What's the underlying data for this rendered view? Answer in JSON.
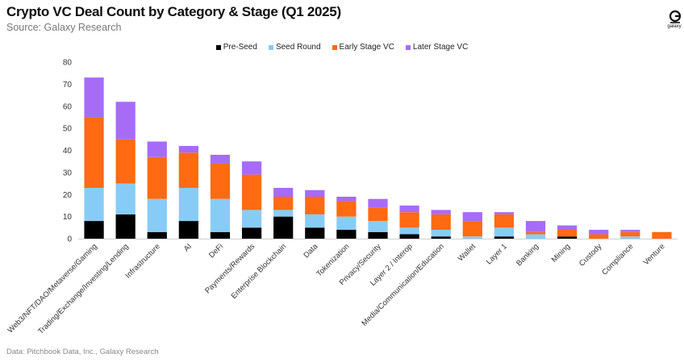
{
  "header": {
    "title": "Crypto VC Deal Count by Category & Stage (Q1 2025)",
    "subtitle": "Source: Galaxy Research"
  },
  "logo": {
    "text": "galaxy",
    "icon": "galaxy-logo-icon"
  },
  "footer": {
    "note": "Data: Pitchbook Data, Inc., Galaxy Research"
  },
  "colors": {
    "Pre-Seed": "#000000",
    "Seed Round": "#87ccf6",
    "Early Stage VC": "#ff6a13",
    "Later Stage VC": "#a66cf7"
  },
  "chart_data": {
    "type": "bar",
    "stacked": true,
    "ylim": [
      0,
      80
    ],
    "yticks": [
      0,
      10,
      20,
      30,
      40,
      50,
      60,
      70,
      80
    ],
    "grid": false,
    "legend_position": "top-center",
    "categories": [
      "Web3/NFT/DAO/Metaverse/Gaming",
      "Trading/Exchange/Investing/Lending",
      "Infrastructure",
      "AI",
      "DeFi",
      "Payments/Rewards",
      "Enterprise Blockchain",
      "Data",
      "Tokenization",
      "Privacy/Security",
      "Layer 2 / Interop",
      "Media/Communication/Education",
      "Wallet",
      "Layer 1",
      "Banking",
      "Mining",
      "Custody",
      "Compliance",
      "Venture"
    ],
    "series": [
      {
        "name": "Pre-Seed",
        "values": [
          8,
          11,
          3,
          8,
          3,
          5,
          10,
          5,
          4,
          3,
          2,
          1,
          0,
          1,
          0,
          1,
          0,
          0,
          0
        ]
      },
      {
        "name": "Seed Round",
        "values": [
          15,
          14,
          15,
          15,
          15,
          8,
          3,
          6,
          6,
          5,
          3,
          3,
          1,
          4,
          2,
          0,
          0,
          1,
          0
        ]
      },
      {
        "name": "Early Stage VC",
        "values": [
          32,
          20,
          19,
          16,
          16,
          16,
          6,
          8,
          7,
          6,
          7,
          7,
          7,
          6,
          1,
          3,
          2,
          2,
          3
        ]
      },
      {
        "name": "Later Stage VC",
        "values": [
          18,
          17,
          7,
          3,
          4,
          6,
          4,
          3,
          2,
          4,
          3,
          2,
          4,
          1,
          5,
          2,
          2,
          1,
          0
        ]
      }
    ]
  }
}
